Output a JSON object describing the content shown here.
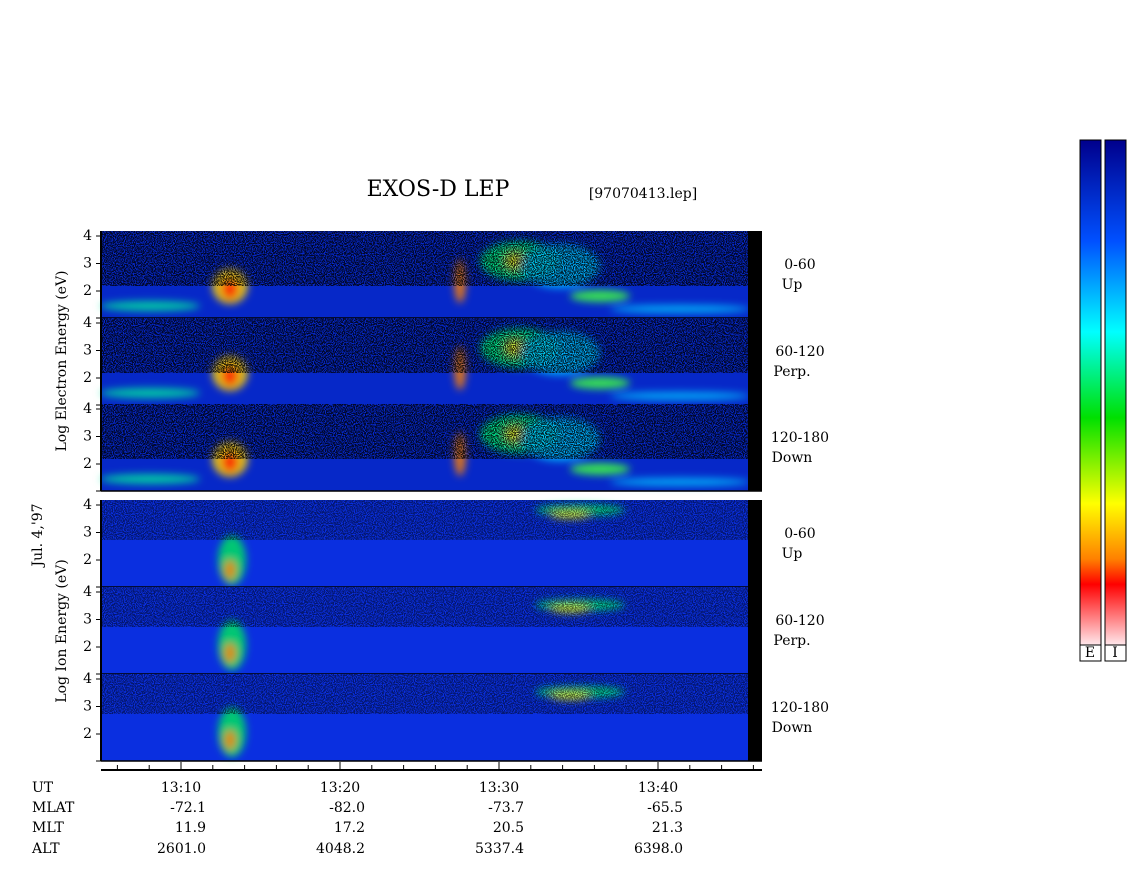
{
  "title": "EXOS-D LEP",
  "file": "[97070413.lep]",
  "date": "Jul. 4,'97",
  "electron_axis_label": "Log  Electron  Energy (eV)",
  "ion_axis_label": "Log  Ion  Energy (eV)",
  "energy_ticks": [
    "4",
    "3",
    "2"
  ],
  "panels": [
    {
      "label": "0-60",
      "sublabel": "Up"
    },
    {
      "label": "60-120",
      "sublabel": "Perp."
    },
    {
      "label": "120-180",
      "sublabel": "Down"
    },
    {
      "label": "0-60",
      "sublabel": "Up"
    },
    {
      "label": "60-120",
      "sublabel": "Perp."
    },
    {
      "label": "120-180",
      "sublabel": "Down"
    }
  ],
  "colorbar_labels": [
    "E",
    "I"
  ],
  "time_rows": [
    {
      "name": "UT",
      "values": [
        "13:10",
        "13:20",
        "13:30",
        "13:40"
      ]
    },
    {
      "name": "MLAT",
      "values": [
        "-72.1",
        "-82.0",
        "-73.7",
        "-65.5"
      ]
    },
    {
      "name": "MLT",
      "values": [
        "11.9",
        "17.2",
        "20.5",
        "21.3"
      ]
    },
    {
      "name": "ALT",
      "values": [
        "2601.0",
        "4048.2",
        "5337.4",
        "6398.0"
      ]
    }
  ]
}
